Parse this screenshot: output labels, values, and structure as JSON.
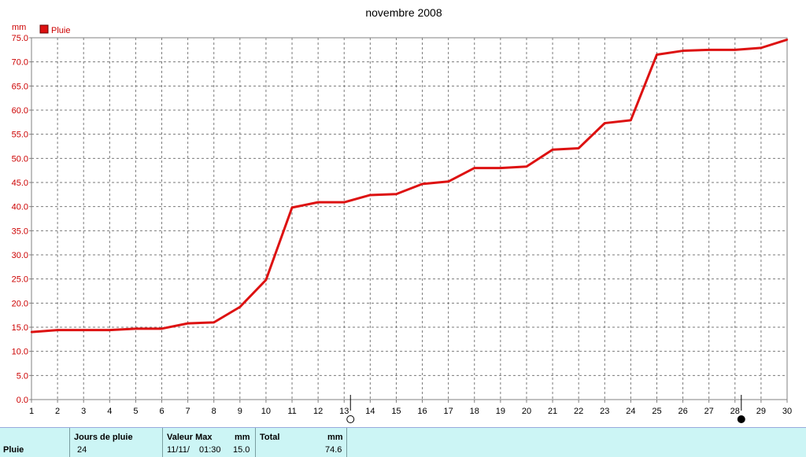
{
  "chart_data": {
    "type": "line",
    "title": "novembre 2008",
    "ylabel": "mm",
    "xlabel": "",
    "ylim": [
      0,
      75
    ],
    "xlim": [
      1,
      30
    ],
    "grid": true,
    "legend": {
      "placement": "top-left",
      "entries": [
        {
          "name": "Pluie",
          "color": "#dd1111"
        }
      ]
    },
    "x_ticks": [
      "1",
      "2",
      "3",
      "4",
      "5",
      "6",
      "7",
      "8",
      "9",
      "10",
      "11",
      "12",
      "13",
      "14",
      "15",
      "16",
      "17",
      "18",
      "19",
      "20",
      "21",
      "22",
      "23",
      "24",
      "25",
      "26",
      "27",
      "28",
      "29",
      "30"
    ],
    "y_ticks": [
      "0.0",
      "5.0",
      "10.0",
      "15.0",
      "20.0",
      "25.0",
      "30.0",
      "35.0",
      "40.0",
      "45.0",
      "50.0",
      "55.0",
      "60.0",
      "65.0",
      "70.0",
      "75.0"
    ],
    "series": [
      {
        "name": "Pluie",
        "color": "#dd1111",
        "x": [
          1,
          2,
          3,
          4,
          5,
          6,
          7,
          8,
          9,
          10,
          11,
          12,
          13,
          14,
          15,
          16,
          17,
          18,
          19,
          20,
          21,
          22,
          23,
          24,
          25,
          26,
          27,
          28,
          29,
          30
        ],
        "values": [
          14.0,
          14.4,
          14.4,
          14.4,
          14.7,
          14.7,
          15.8,
          16.0,
          19.2,
          24.8,
          39.8,
          40.9,
          40.9,
          42.4,
          42.6,
          44.7,
          45.2,
          48.0,
          48.0,
          48.3,
          51.8,
          52.1,
          57.3,
          57.9,
          71.5,
          72.3,
          72.5,
          72.5,
          72.9,
          74.6
        ]
      }
    ],
    "moon_phases": [
      {
        "x": 13,
        "phase": "full-moon"
      },
      {
        "x": 28,
        "phase": "new-moon"
      }
    ]
  },
  "stats": {
    "row_label": "Pluie",
    "col1_header": "Jours de pluie",
    "col1_value": "24",
    "col2_header": "Valeur Max",
    "col2_unit": "mm",
    "col2_date": "11/11/",
    "col2_time": "01:30",
    "col2_value": "15.0",
    "col3_header": "Total",
    "col3_unit": "mm",
    "col3_value": "74.6"
  }
}
